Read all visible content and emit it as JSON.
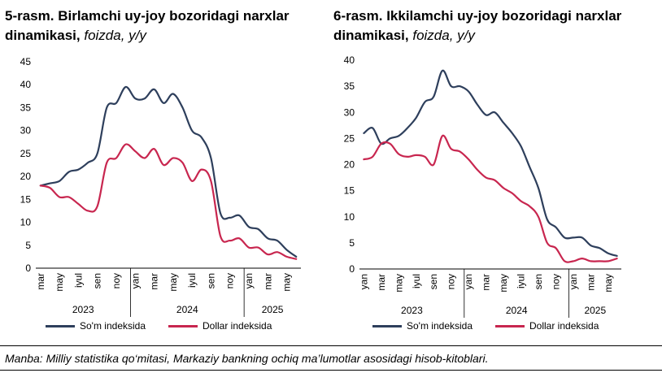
{
  "colors": {
    "som": "#2e3f5c",
    "dollar": "#c8264f"
  },
  "chart_data": [
    {
      "type": "line",
      "title_bold": "5-rasm. Birlamchi uy-joy bozoridagi narxlar dinamikasi,",
      "title_italic": "foizda, y/y",
      "ylim": [
        0,
        45
      ],
      "yticks": [
        "0",
        "5",
        "10",
        "15",
        "20",
        "25",
        "30",
        "35",
        "40",
        "45"
      ],
      "month_labels": [
        "mar",
        "may",
        "iyul",
        "sen",
        "noy",
        "yan",
        "mar",
        "may",
        "iyul",
        "sen",
        "noy",
        "yan",
        "mar",
        "may"
      ],
      "month_label_index": [
        0,
        2,
        4,
        6,
        8,
        10,
        12,
        14,
        16,
        18,
        20,
        22,
        24,
        26
      ],
      "years": [
        {
          "label": "2023",
          "from": 0,
          "to": 10
        },
        {
          "label": "2024",
          "from": 10,
          "to": 22
        },
        {
          "label": "2025",
          "from": 22,
          "to": 28
        }
      ],
      "n_points": 28,
      "legend": [
        "So'm indeksida",
        "Dollar indeksida"
      ],
      "series": [
        {
          "name": "So'm indeksida",
          "values": [
            18,
            18.5,
            19,
            21,
            21.5,
            23,
            25,
            35,
            36,
            39.5,
            37,
            37,
            39,
            36,
            38,
            35,
            30,
            28.5,
            24,
            12,
            11,
            11.5,
            9,
            8.5,
            6.5,
            6,
            4,
            2.5
          ]
        },
        {
          "name": "Dollar indeksida",
          "values": [
            18,
            17.5,
            15.5,
            15.5,
            14,
            12.5,
            13.5,
            23,
            24,
            27,
            25.5,
            24,
            26,
            22.5,
            24,
            23,
            19,
            21.5,
            19,
            7,
            6,
            6.5,
            4.5,
            4.5,
            3,
            3.5,
            2.5,
            2
          ]
        }
      ]
    },
    {
      "type": "line",
      "title_bold": "6-rasm. Ikkilamchi uy-joy bozoridagi narxlar dinamikasi,",
      "title_italic": "foizda, y/y",
      "ylim": [
        0,
        40
      ],
      "yticks": [
        "0",
        "5",
        "10",
        "15",
        "20",
        "25",
        "30",
        "35",
        "40"
      ],
      "month_labels": [
        "yan",
        "mar",
        "may",
        "iyul",
        "sen",
        "noy",
        "yan",
        "mar",
        "may",
        "iyul",
        "sen",
        "noy",
        "yan",
        "mar",
        "may"
      ],
      "month_label_index": [
        0,
        2,
        4,
        6,
        8,
        10,
        12,
        14,
        16,
        18,
        20,
        22,
        24,
        26,
        28
      ],
      "years": [
        {
          "label": "2023",
          "from": 0,
          "to": 12
        },
        {
          "label": "2024",
          "from": 12,
          "to": 24
        },
        {
          "label": "2025",
          "from": 24,
          "to": 30
        }
      ],
      "n_points": 30,
      "legend": [
        "So'm indeksida",
        "Dollar indeksida"
      ],
      "series": [
        {
          "name": "So'm indeksida",
          "values": [
            26,
            27,
            24,
            25,
            25.5,
            27,
            29,
            32,
            33,
            38,
            35,
            35,
            34,
            31.5,
            29.5,
            30,
            28,
            26,
            23.5,
            19.5,
            15.5,
            9.5,
            8,
            6,
            6,
            6,
            4.5,
            4,
            3,
            2.5
          ]
        },
        {
          "name": "Dollar indeksida",
          "values": [
            21,
            21.5,
            24,
            24,
            22,
            21.5,
            21.8,
            21.5,
            20,
            25.5,
            23,
            22.5,
            21,
            19,
            17.5,
            17,
            15.5,
            14.5,
            13,
            12,
            10,
            5,
            4,
            1.5,
            1.5,
            2,
            1.5,
            1.5,
            1.5,
            2
          ]
        }
      ]
    }
  ],
  "source_note": "Manba: Milliy statistika qo‘mitasi, Markaziy bankning ochiq ma’lumotlar asosidagi hisob-kitoblari."
}
